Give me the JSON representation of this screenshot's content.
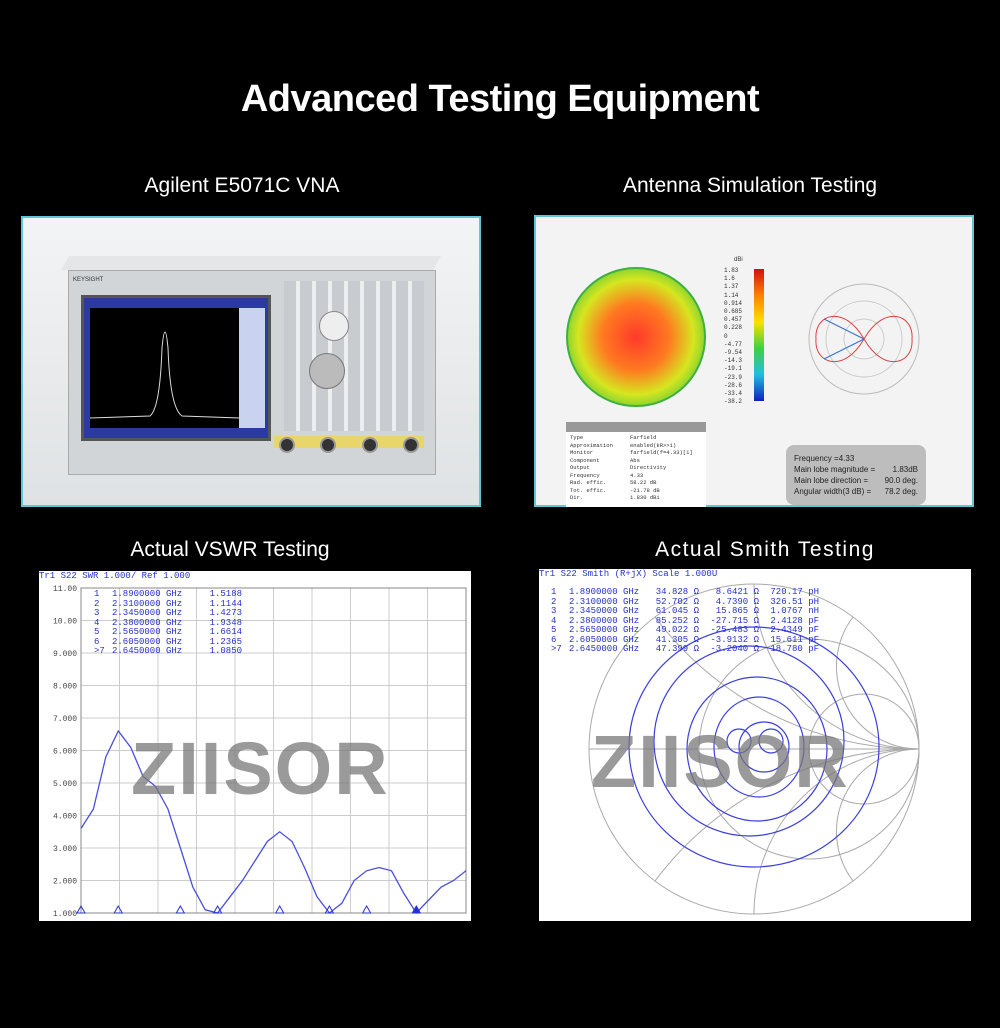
{
  "page_title": "Advanced Testing Equipment",
  "sections": [
    {
      "caption": "Agilent E5071C VNA",
      "brand": "KEYSIGHT"
    },
    {
      "caption": "Antenna Simulation Testing",
      "colorbar_unit": "dBi",
      "colorbar_ticks": [
        "1.83",
        "1.6",
        "1.37",
        "1.14",
        "0.914",
        "0.685",
        "0.457",
        "0.228",
        "0",
        "-4.77",
        "-9.54",
        "-14.3",
        "-19.1",
        "-23.9",
        "-28.6",
        "-33.4",
        "-38.2"
      ],
      "table": [
        [
          "Type",
          "Farfield"
        ],
        [
          "Approximation",
          "enabled(kR>>1)"
        ],
        [
          "Monitor",
          "farfield(f=4.33)[1]"
        ],
        [
          "Component",
          "Abs"
        ],
        [
          "Output",
          "Directivity"
        ],
        [
          "Frequency",
          "4.33"
        ],
        [
          "Rad. effic.",
          "58.22 dB"
        ],
        [
          "Tot. effic.",
          "-21.78 dB"
        ],
        [
          "Dir.",
          "1.830 dBi"
        ]
      ],
      "info": {
        "frequency": "Frequency =4.33",
        "magnitude_label": "Main lobe magnitude =",
        "magnitude": "1.83dB",
        "direction_label": "Main lobe direction =",
        "direction": "90.0 deg.",
        "width_label": "Angular width(3 dB) =",
        "width": "78.2 deg."
      }
    },
    {
      "caption": "Actual VSWR Testing",
      "header": "Tr1 S22 SWR 1.000/ Ref 1.000",
      "markers": [
        [
          "1",
          "1.8900000 GHz",
          "1.5188"
        ],
        [
          "2",
          "2.3100000 GHz",
          "1.1144"
        ],
        [
          "3",
          "2.3450000 GHz",
          "1.4273"
        ],
        [
          "4",
          "2.3800000 GHz",
          "1.9348"
        ],
        [
          "5",
          "2.5650000 GHz",
          "1.6614"
        ],
        [
          "6",
          "2.6050000 GHz",
          "1.2365"
        ],
        [
          ">7",
          "2.6450000 GHz",
          "1.0850"
        ]
      ],
      "watermark": "ZIISOR"
    },
    {
      "caption": "Actual Smith Testing",
      "header": "Tr1 S22 Smith (R+jX) Scale 1.000U",
      "markers": [
        [
          "1",
          "1.8900000 GHz",
          "34.828 Ω",
          "8.6421 Ω",
          "720.17 pH"
        ],
        [
          "2",
          "2.3100000 GHz",
          "52.702 Ω",
          "4.7390 Ω",
          "326.51 pH"
        ],
        [
          "3",
          "2.3450000 GHz",
          "61.045 Ω",
          "15.865 Ω",
          "1.0767 nH"
        ],
        [
          "4",
          "2.3800000 GHz",
          "85.252 Ω",
          "-27.715 Ω",
          "2.4128 pF"
        ],
        [
          "5",
          "2.5650000 GHz",
          "49.022 Ω",
          "-25.483 Ω",
          "2.4349 pF"
        ],
        [
          "6",
          "2.6050000 GHz",
          "41.305 Ω",
          "-3.9132 Ω",
          "15.611 pF"
        ],
        [
          ">7",
          "2.6450000 GHz",
          "47.399 Ω",
          "-3.2040 Ω",
          "18.780 pF"
        ]
      ],
      "watermark": "ZIISOR"
    }
  ],
  "chart_data": {
    "type": "line",
    "ylim": [
      1,
      11
    ],
    "yticks": [
      "11.00",
      "10.00",
      "9.000",
      "8.000",
      "7.000",
      "6.000",
      "5.000",
      "4.000",
      "3.000",
      "2.000",
      "1.000"
    ],
    "grid": true,
    "series": [
      {
        "values": [
          3.6,
          4.2,
          5.8,
          6.6,
          6.1,
          5.2,
          4.9,
          4.2,
          3.0,
          1.8,
          1.1,
          1.0,
          1.5,
          2.0,
          2.6,
          3.2,
          3.5,
          3.2,
          2.4,
          1.5,
          1.0,
          1.3,
          2.0,
          2.3,
          2.4,
          2.3,
          1.6,
          1.0,
          1.4,
          1.8,
          2.0,
          2.3
        ]
      }
    ],
    "line_color": "#4a4ee0"
  }
}
